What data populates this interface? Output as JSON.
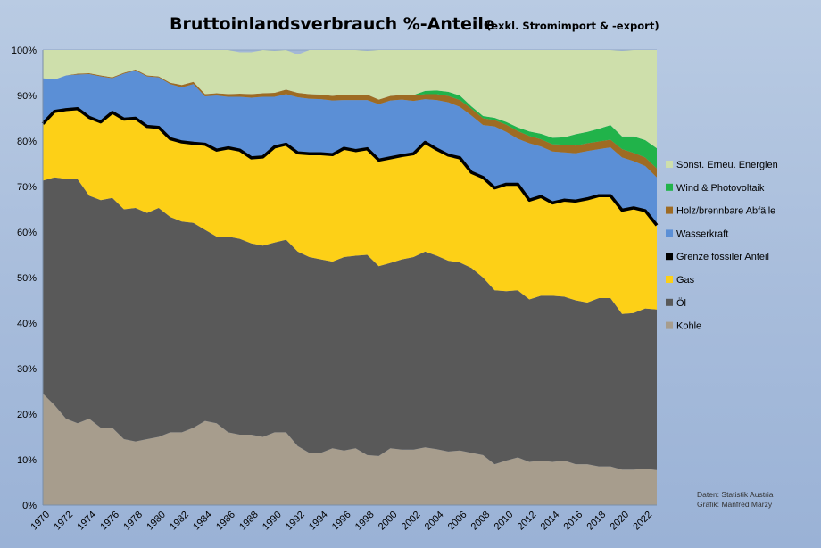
{
  "chart_data": {
    "type": "area",
    "stacked": true,
    "title": "Bruttoinlandsverbrauch %-Anteile",
    "subtitle": "(exkl. Stromimport & -export)",
    "xlabel": "",
    "ylabel": "",
    "ylim": [
      0,
      100
    ],
    "y_ticks": [
      "0%",
      "10%",
      "20%",
      "30%",
      "40%",
      "50%",
      "60%",
      "70%",
      "80%",
      "90%",
      "100%"
    ],
    "y_tick_values": [
      0,
      10,
      20,
      30,
      40,
      50,
      60,
      70,
      80,
      90,
      100
    ],
    "x_ticks": [
      "1970",
      "1972",
      "1974",
      "1976",
      "1978",
      "1980",
      "1982",
      "1984",
      "1986",
      "1988",
      "1990",
      "1992",
      "1994",
      "1996",
      "1998",
      "2000",
      "2002",
      "2004",
      "2006",
      "2008",
      "2010",
      "2012",
      "2014",
      "2016",
      "2018",
      "2020",
      "2022"
    ],
    "x_tick_values": [
      1970,
      1972,
      1974,
      1976,
      1978,
      1980,
      1982,
      1984,
      1986,
      1988,
      1990,
      1992,
      1994,
      1996,
      1998,
      2000,
      2002,
      2004,
      2006,
      2008,
      2010,
      2012,
      2014,
      2016,
      2018,
      2020,
      2022
    ],
    "x": [
      1970,
      1971,
      1972,
      1973,
      1974,
      1975,
      1976,
      1977,
      1978,
      1979,
      1980,
      1981,
      1982,
      1983,
      1984,
      1985,
      1986,
      1987,
      1988,
      1989,
      1990,
      1991,
      1992,
      1993,
      1994,
      1995,
      1996,
      1997,
      1998,
      1999,
      2000,
      2001,
      2002,
      2003,
      2004,
      2005,
      2006,
      2007,
      2008,
      2009,
      2010,
      2011,
      2012,
      2013,
      2014,
      2015,
      2016,
      2017,
      2018,
      2019,
      2020,
      2021,
      2022,
      2023
    ],
    "grid": true,
    "legend_position": "right",
    "series": [
      {
        "name": "Kohle",
        "color": "#a79d8d",
        "values": [
          24.5,
          22,
          19,
          18,
          19,
          17,
          17,
          14.5,
          14,
          14.5,
          15,
          16,
          16,
          17,
          18.5,
          18,
          16,
          15.5,
          15.5,
          15,
          16,
          16,
          13,
          11.5,
          11.5,
          12.5,
          12,
          12.5,
          11,
          10.8,
          12.5,
          12.2,
          12.2,
          12.7,
          12.3,
          11.8,
          12,
          11.5,
          11,
          9,
          9.8,
          10.5,
          9.5,
          9.8,
          9.5,
          9.8,
          9,
          9,
          8.5,
          8.5,
          7.8,
          7.8,
          8,
          7.7
        ]
      },
      {
        "name": "Öl",
        "color": "#595959",
        "values": [
          46.8,
          50,
          52.7,
          53.6,
          49,
          50,
          50.5,
          50.5,
          51.3,
          49.7,
          50.3,
          47.3,
          46.3,
          45,
          42,
          41,
          43,
          43,
          42,
          42,
          41.7,
          42.3,
          42.7,
          43,
          42.5,
          41,
          42.5,
          42.3,
          44,
          41.7,
          40.7,
          41.8,
          42.3,
          43,
          42.5,
          41.9,
          41.3,
          40.6,
          39,
          38.2,
          37.2,
          36.7,
          35.7,
          36.2,
          36.5,
          36,
          36,
          35.5,
          37,
          37,
          34.2,
          34.4,
          35.2,
          35.3
        ]
      },
      {
        "name": "Gas",
        "color": "#fdd017",
        "values": [
          12.5,
          14.5,
          15.2,
          15.5,
          17.2,
          17.2,
          18.8,
          19.8,
          19.7,
          19,
          17.7,
          17.2,
          17.5,
          17.5,
          18.8,
          19,
          19.5,
          19.5,
          18.8,
          19.5,
          21,
          21,
          21.7,
          22.7,
          23.2,
          23.5,
          23.9,
          23.1,
          23.3,
          23.3,
          23.1,
          22.8,
          22.7,
          24,
          23.4,
          23.2,
          23,
          21,
          22,
          22.5,
          23.5,
          23.3,
          21.8,
          21.8,
          20.4,
          21.2,
          21.8,
          22.8,
          22.5,
          22.5,
          22.8,
          23.1,
          21.5,
          18.5
        ]
      },
      {
        "name": "Wasserkraft",
        "color": "#5b8fd6",
        "values": [
          10,
          7,
          7.5,
          7.5,
          9.5,
          10,
          7.5,
          10,
          10.5,
          11,
          11,
          12,
          12,
          13,
          10.5,
          12,
          11.2,
          11.7,
          13.2,
          13.2,
          11,
          11,
          12.2,
          12.1,
          12,
          11.9,
          10.6,
          11.1,
          10.7,
          12.3,
          12.6,
          12.3,
          11.6,
          9.5,
          10.8,
          11.6,
          11.2,
          12.5,
          11.5,
          13.5,
          11.5,
          10,
          12.5,
          11,
          11.3,
          10.5,
          10.5,
          10.5,
          10.2,
          10.6,
          11.6,
          10.3,
          9.8,
          10.5
        ]
      },
      {
        "name": "Holz/brennbare Abfälle",
        "color": "#9e6b23",
        "values": [
          0,
          0,
          0,
          0.2,
          0.2,
          0.2,
          0.2,
          0.2,
          0.2,
          0.2,
          0.2,
          0.3,
          0.5,
          0.5,
          0.5,
          0.5,
          0.6,
          0.7,
          0.8,
          0.8,
          0.9,
          1,
          1,
          1,
          1,
          1,
          1.2,
          1.2,
          1.2,
          1,
          1,
          1,
          1.2,
          1.1,
          1.3,
          1.4,
          1.5,
          1.5,
          1.5,
          1.4,
          1.6,
          1.7,
          1.6,
          1.6,
          1.6,
          1.7,
          1.7,
          1.7,
          1.7,
          1.7,
          1.8,
          1.8,
          1.9,
          2
        ]
      },
      {
        "name": "Wind & Photovoltaik",
        "color": "#21b34a",
        "values": [
          0,
          0,
          0,
          0,
          0,
          0,
          0,
          0,
          0,
          0,
          0,
          0,
          0,
          0,
          0,
          0,
          0,
          0,
          0,
          0,
          0,
          0,
          0,
          0,
          0,
          0,
          0,
          0,
          0,
          0,
          0,
          0,
          0.1,
          0.7,
          0.8,
          0.9,
          1,
          0.5,
          0.5,
          0.5,
          0.6,
          0.8,
          1,
          1.2,
          1.4,
          1.6,
          2.5,
          2.5,
          2.8,
          3.2,
          2.8,
          3.6,
          3.8,
          4.4
        ]
      },
      {
        "name": "Sonst. Erneu. Energien",
        "color": "#cedfab",
        "values": [
          6.2,
          6.5,
          5.6,
          5.2,
          5.1,
          5.6,
          6,
          5,
          4.3,
          5.6,
          5.8,
          7.2,
          7.7,
          7.1,
          9.7,
          9.5,
          9.7,
          9.1,
          9.2,
          9.5,
          9.2,
          8.7,
          8.4,
          9.7,
          9.8,
          10.1,
          10.8,
          9.8,
          9.6,
          11,
          10.2,
          9.9,
          9.9,
          9,
          8.9,
          9.2,
          10,
          12.4,
          14.5,
          14.9,
          15.8,
          17,
          18,
          18.4,
          19.3,
          19.2,
          18.5,
          18,
          17.3,
          16.5,
          18.8,
          19,
          19.8,
          21.6
        ]
      }
    ],
    "boundary_line": {
      "name": "Grenze fossiler Anteil",
      "color": "#000000"
    },
    "legend_order": [
      "Sonst. Erneu. Energien",
      "Wind & Photovoltaik",
      "Holz/brennbare Abfälle",
      "Wasserkraft",
      "Grenze fossiler Anteil",
      "Gas",
      "Öl",
      "Kohle"
    ],
    "credits": [
      "Daten: Statistik Austria",
      "Grafik: Manfred Marzy"
    ]
  }
}
